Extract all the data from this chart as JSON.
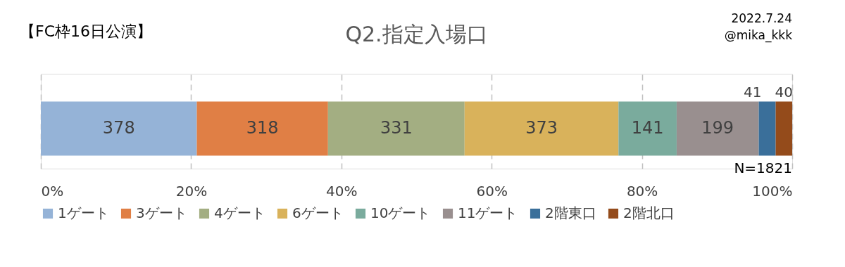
{
  "chart_data": {
    "type": "bar",
    "orientation": "horizontal",
    "stacked": true,
    "title": "Q2.指定入場口",
    "categories": [
      null
    ],
    "series": [
      {
        "name": "1ゲート",
        "color": "#95b3d7",
        "values": [
          378
        ]
      },
      {
        "name": "3ゲート",
        "color": "#e07f45",
        "values": [
          318
        ]
      },
      {
        "name": "4ゲート",
        "color": "#a3ae82",
        "values": [
          331
        ]
      },
      {
        "name": "6ゲート",
        "color": "#d9b25b",
        "values": [
          373
        ]
      },
      {
        "name": "10ゲート",
        "color": "#7aab9d",
        "values": [
          141
        ]
      },
      {
        "name": "11ゲート",
        "color": "#998f8f",
        "values": [
          199
        ]
      },
      {
        "name": "2階東口",
        "color": "#3a6f9a",
        "values": [
          41
        ]
      },
      {
        "name": "2階北口",
        "color": "#944b1b",
        "values": [
          40
        ]
      }
    ],
    "xlim": [
      0,
      1821
    ],
    "x2lim": [
      0,
      100
    ],
    "x2ticks": [
      {
        "value": 0,
        "label": "0%"
      },
      {
        "value": 20,
        "label": "20%"
      },
      {
        "value": 40,
        "label": "40%"
      },
      {
        "value": 60,
        "label": "60%"
      },
      {
        "value": 80,
        "label": "80%"
      },
      {
        "value": 100,
        "label": "100%"
      }
    ],
    "grid": "x",
    "legend": "bottom",
    "data_labels": true,
    "annotations": [
      "【FC枠16日公演】",
      "2022.7.24",
      "@mika_kkk",
      "N=1821"
    ]
  }
}
